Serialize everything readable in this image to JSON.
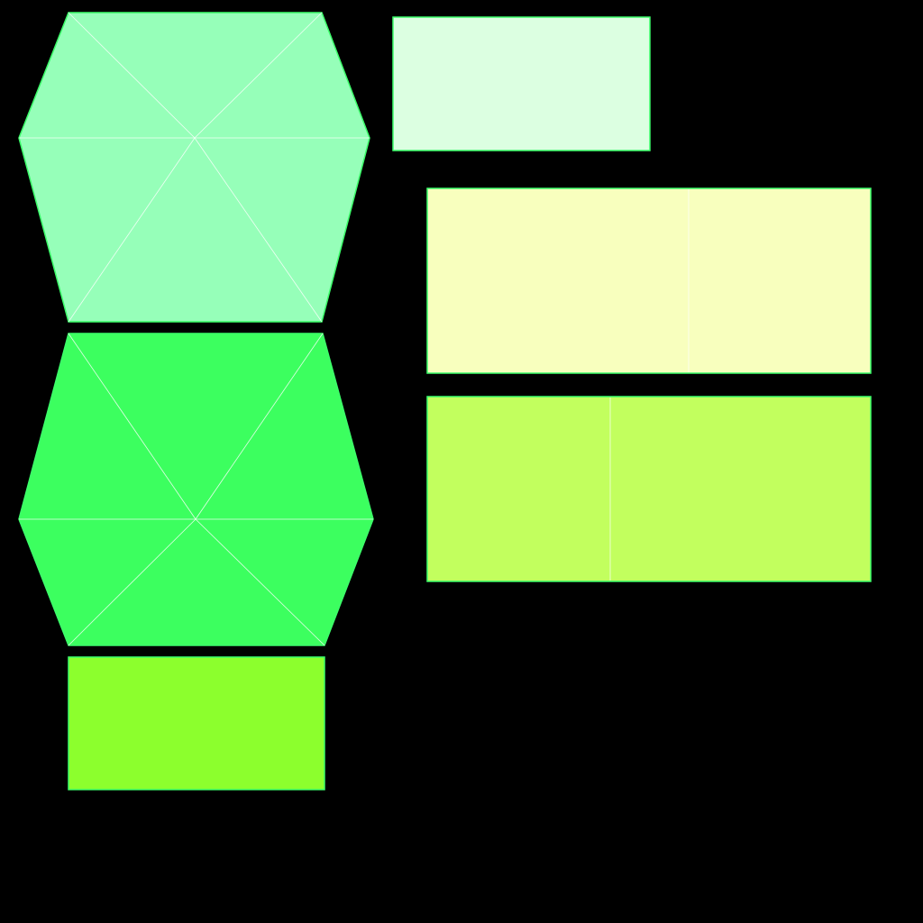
{
  "background": "#000000",
  "edge_color": "#3cff6a",
  "seam_color": "#ffffff",
  "shapes": [
    {
      "name": "hexagon-mint",
      "kind": "hexagon",
      "fill": "#96ffb9"
    },
    {
      "name": "hexagon-green",
      "kind": "hexagon",
      "fill": "#3cff5f"
    },
    {
      "name": "rect-chartreuse",
      "kind": "rect",
      "fill": "#8cff2d"
    },
    {
      "name": "rect-pale-mint",
      "kind": "rect",
      "fill": "#dcffe1"
    },
    {
      "name": "rect-pale-yellow",
      "kind": "rect",
      "fill": "#f8ffbe"
    },
    {
      "name": "rect-lime",
      "kind": "rect",
      "fill": "#c2ff5e"
    }
  ]
}
